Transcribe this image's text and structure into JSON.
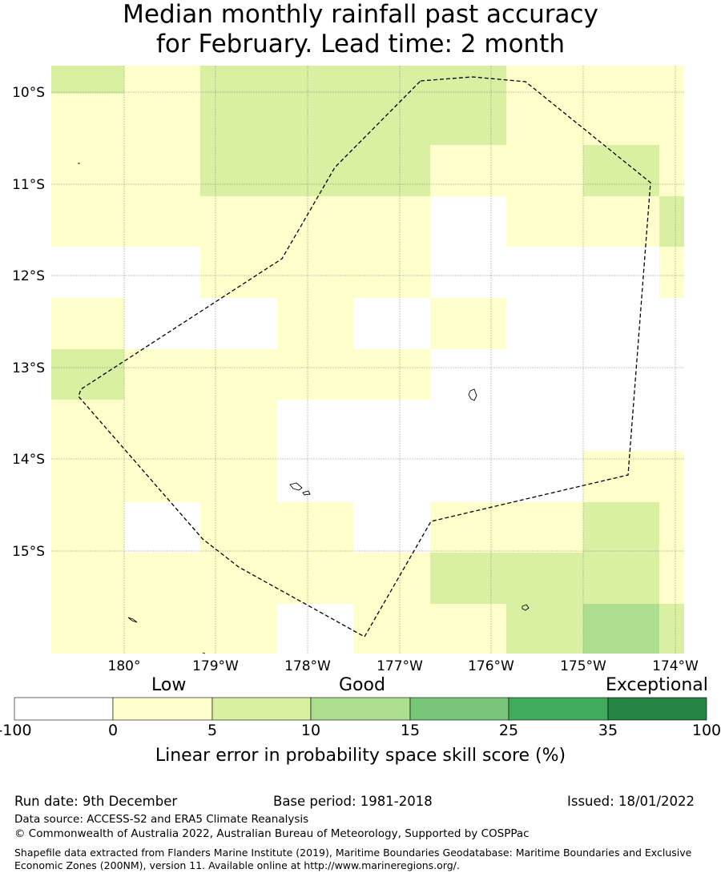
{
  "title": {
    "line1": "Median monthly rainfall past accuracy",
    "line2": "for February. Lead time: 2 month"
  },
  "map": {
    "lat_labels": [
      "10°S",
      "11°S",
      "12°S",
      "13°S",
      "14°S",
      "15°S"
    ],
    "lon_labels": [
      "180°",
      "179°W",
      "178°W",
      "177°W",
      "176°W",
      "175°W",
      "174°W"
    ],
    "colors": {
      "c0": "#ffffff",
      "c1": "#ffffcc",
      "c2": "#d9f0a3",
      "c3": "#addd8e",
      "c4": "#78c679",
      "c5": "#41ab5d",
      "c6": "#238443"
    }
  },
  "colorbar": {
    "words": [
      "Low",
      "Good",
      "Exceptional"
    ],
    "ticks": [
      "-100",
      "0",
      "5",
      "10",
      "15",
      "25",
      "35",
      "100"
    ],
    "caption": "Linear error in probability space skill score (%)"
  },
  "footer": {
    "run_date": "Run date: 9th December",
    "base_period": "Base period: 1981-2018",
    "issued": "Issued: 18/01/2022",
    "data_source": "Data source: ACCESS-S2 and ERA5 Climate Reanalysis",
    "copyright": "© Commonwealth of Australia 2022, Australian Bureau of Meteorology, Supported by COSPPac",
    "shapefile": "Shapefile data extracted from Flanders Marine Institute (2019), Maritime Boundaries Geodatabase: Maritime Boundaries and Exclusive Economic Zones (200NM), version 11. Available online at http://www.marineregions.org/."
  }
}
